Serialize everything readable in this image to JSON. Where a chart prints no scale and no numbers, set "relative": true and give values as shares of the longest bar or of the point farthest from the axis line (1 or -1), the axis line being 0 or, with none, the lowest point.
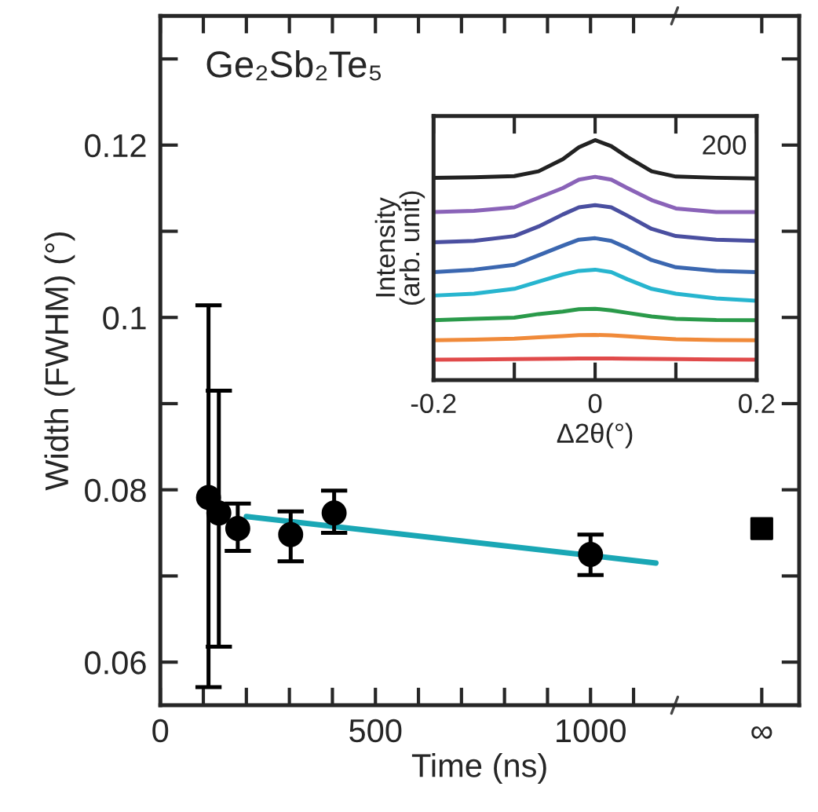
{
  "chart_data": [
    {
      "type": "scatter",
      "xlabel": "Time (ns)",
      "ylabel": "Width (FWHM) (°)",
      "annotations": [
        "Ge₂Sb₂Te₅"
      ],
      "xlim": [
        0,
        1485
      ],
      "xticks": [
        0,
        {
          "value": 100,
          "label": null
        },
        {
          "value": 200,
          "label": null
        },
        {
          "value": 300,
          "label": null
        },
        {
          "value": 400,
          "label": null
        },
        500,
        {
          "value": 600,
          "label": null
        },
        {
          "value": 700,
          "label": null
        },
        {
          "value": 800,
          "label": null
        },
        {
          "value": 900,
          "label": null
        },
        1000,
        {
          "value": 1100,
          "label": null
        },
        {
          "value": 1398,
          "label": "∞"
        }
      ],
      "ylim": [
        0.055,
        0.135
      ],
      "yticks": [
        0.06,
        {
          "value": 0.07,
          "label": null
        },
        0.08,
        {
          "value": 0.09,
          "label": null
        },
        0.1,
        {
          "value": 0.11,
          "label": null
        },
        0.12,
        {
          "value": 0.13,
          "label": null
        }
      ],
      "grid": false,
      "legend": false,
      "series": [
        {
          "type": "scatter",
          "marker": "circle",
          "color": "#000000",
          "x": [
            112,
            136,
            180,
            303,
            404,
            1000
          ],
          "values": [
            0.0791,
            0.0773,
            0.0755,
            0.0748,
            0.0773,
            0.0725
          ],
          "errors": [
            [
              0.0571,
              0.1014
            ],
            [
              0.0618,
              0.0915
            ],
            [
              0.0729,
              0.0784
            ],
            [
              0.0717,
              0.0775
            ],
            [
              0.075,
              0.0799
            ],
            [
              0.0701,
              0.0748
            ]
          ]
        },
        {
          "type": "line",
          "color": "#1aa7b5",
          "x": [
            200,
            1152
          ],
          "values": [
            0.0769,
            0.0715
          ]
        },
        {
          "type": "scatter",
          "marker": "square",
          "color": "#000000",
          "x": [
            1398
          ],
          "values": [
            0.0755
          ]
        }
      ]
    },
    {
      "type": "line",
      "relative": true,
      "xlabel": "Δ2θ(°)",
      "ylabel": "Intensity\n(arb. unit)",
      "annotations": [
        "200"
      ],
      "xlim": [
        -0.2,
        0.2
      ],
      "xticks": [
        -0.2,
        {
          "value": -0.1,
          "label": null
        },
        0,
        {
          "value": 0.1,
          "label": null
        },
        0.2
      ],
      "x": [
        -0.2,
        -0.15,
        -0.1,
        -0.07,
        -0.04,
        -0.02,
        0,
        0.02,
        0.04,
        0.07,
        0.1,
        0.15,
        0.2
      ],
      "series": [
        {
          "color": "#222222",
          "values": [
            0.843,
            0.845,
            0.85,
            0.87,
            0.92,
            0.97,
            1.0,
            0.975,
            0.93,
            0.87,
            0.848,
            0.843,
            0.84
          ]
        },
        {
          "color": "#8a63b8",
          "values": [
            0.7,
            0.705,
            0.72,
            0.76,
            0.8,
            0.835,
            0.847,
            0.835,
            0.8,
            0.75,
            0.715,
            0.7,
            0.7
          ]
        },
        {
          "color": "#4a4fa0",
          "values": [
            0.574,
            0.58,
            0.6,
            0.64,
            0.69,
            0.72,
            0.729,
            0.72,
            0.685,
            0.63,
            0.6,
            0.585,
            0.58
          ]
        },
        {
          "color": "#3b67b0",
          "values": [
            0.45,
            0.46,
            0.48,
            0.52,
            0.56,
            0.585,
            0.591,
            0.58,
            0.55,
            0.5,
            0.47,
            0.455,
            0.45
          ]
        },
        {
          "color": "#27b5cf",
          "values": [
            0.352,
            0.36,
            0.38,
            0.41,
            0.44,
            0.455,
            0.46,
            0.45,
            0.42,
            0.38,
            0.36,
            0.34,
            0.33
          ]
        },
        {
          "color": "#2a9a4a",
          "values": [
            0.249,
            0.255,
            0.26,
            0.275,
            0.285,
            0.295,
            0.297,
            0.29,
            0.28,
            0.265,
            0.255,
            0.25,
            0.249
          ]
        },
        {
          "color": "#f08a3a",
          "values": [
            0.166,
            0.168,
            0.172,
            0.178,
            0.183,
            0.187,
            0.188,
            0.186,
            0.182,
            0.176,
            0.17,
            0.167,
            0.166
          ]
        },
        {
          "color": "#e04a4a",
          "values": [
            0.085,
            0.086,
            0.087,
            0.088,
            0.089,
            0.09,
            0.09,
            0.09,
            0.089,
            0.088,
            0.087,
            0.086,
            0.085
          ]
        }
      ]
    }
  ]
}
